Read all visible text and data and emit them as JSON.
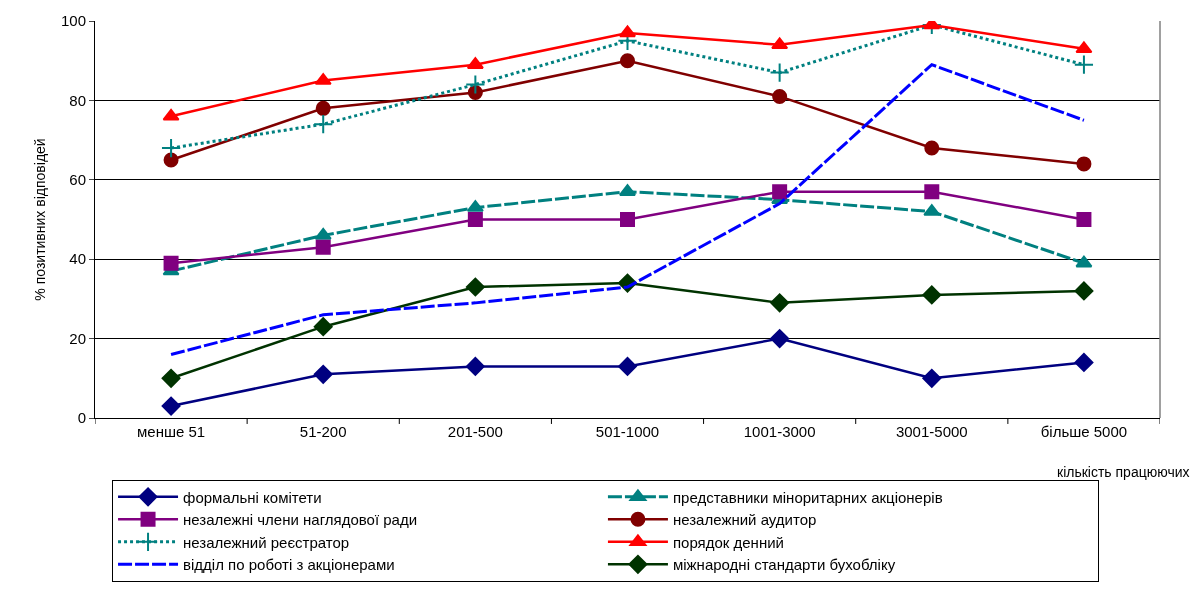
{
  "chart_data": {
    "type": "line",
    "xlabel": "кількість працюючих",
    "ylabel": "% позитивних відповідей",
    "categories": [
      "менше 51",
      "51-200",
      "201-500",
      "501-1000",
      "1001-3000",
      "3001-5000",
      "більше 5000"
    ],
    "ylim": [
      0,
      100
    ],
    "yticks": [
      0,
      20,
      40,
      60,
      80,
      100
    ],
    "grid": "y",
    "legend": "bottom",
    "series": [
      {
        "name": "формальні комітети",
        "color": "#000080",
        "marker": "diamond",
        "line_style": "solid",
        "values": [
          3,
          11,
          13,
          13,
          20,
          10,
          14
        ]
      },
      {
        "name": "представники міноритарних акціонерів",
        "color": "#008080",
        "marker": "triangle",
        "line_style": "dashed",
        "values": [
          37,
          46,
          53,
          57,
          55,
          52,
          39
        ]
      },
      {
        "name": "незалежні члени наглядової ради",
        "color": "#800080",
        "marker": "square",
        "line_style": "solid",
        "values": [
          39,
          43,
          50,
          50,
          57,
          57,
          50
        ]
      },
      {
        "name": "незалежний аудитор",
        "color": "#800000",
        "marker": "circle",
        "line_style": "solid",
        "values": [
          65,
          78,
          82,
          90,
          81,
          68,
          64
        ]
      },
      {
        "name": "незалежний реєстратор",
        "color": "#008080",
        "marker": "cross",
        "line_style": "dotted",
        "values": [
          68,
          74,
          84,
          95,
          87,
          99,
          89
        ]
      },
      {
        "name": "порядок денний",
        "color": "#ff0000",
        "marker": "triangle",
        "line_style": "solid",
        "values": [
          76,
          85,
          89,
          97,
          94,
          99,
          93
        ]
      },
      {
        "name": "відділ по роботі з акціонерами",
        "color": "#0000ff",
        "marker": "none",
        "line_style": "dashed",
        "values": [
          16,
          26,
          29,
          33,
          54,
          89,
          75
        ]
      },
      {
        "name": "міжнародні стандарти бухобліку",
        "color": "#003300",
        "marker": "diamond",
        "line_style": "solid",
        "values": [
          10,
          23,
          33,
          34,
          29,
          31,
          32
        ]
      }
    ]
  }
}
